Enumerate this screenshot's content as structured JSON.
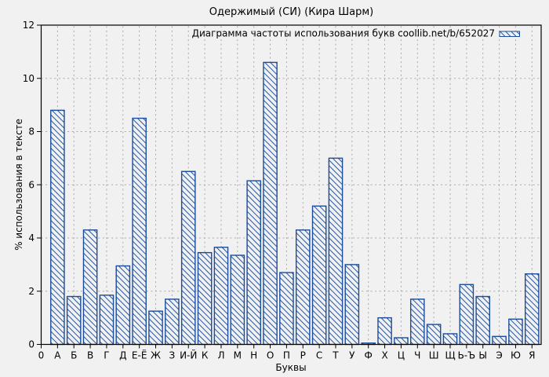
{
  "chart_data": {
    "type": "bar",
    "title": "Одержимый (СИ) (Кира Шарм)",
    "xlabel": "Буквы",
    "ylabel": "% использования в тексте",
    "legend_label": "Диаграмма частоты использования букв coollib.net/b/652027",
    "legend_position": "top-right-inside",
    "bar_style": "diagonal-hatch-outline",
    "grid": true,
    "ylim": [
      0,
      12
    ],
    "yticks": [
      0,
      2,
      4,
      6,
      8,
      10,
      12
    ],
    "x_origin_label": "0",
    "categories": [
      "А",
      "Б",
      "В",
      "Г",
      "Д",
      "Е-Ё",
      "Ж",
      "З",
      "И-Й",
      "К",
      "Л",
      "М",
      "Н",
      "О",
      "П",
      "Р",
      "С",
      "Т",
      "У",
      "Ф",
      "Х",
      "Ц",
      "Ч",
      "Ш",
      "Щ",
      "Ь-Ъ",
      "Ы",
      "Э",
      "Ю",
      "Я"
    ],
    "values": [
      8.8,
      1.8,
      4.3,
      1.85,
      2.95,
      8.5,
      1.25,
      1.7,
      6.5,
      3.45,
      3.65,
      3.35,
      6.15,
      10.6,
      2.7,
      4.3,
      5.2,
      7.0,
      3.0,
      0.05,
      1.0,
      0.25,
      1.7,
      0.75,
      0.4,
      2.25,
      1.8,
      0.3,
      0.95,
      2.65
    ]
  },
  "colors": {
    "background": "#f1f1f1",
    "bar_outline": "#1b4c9c",
    "bar_hatch": "#2357a8",
    "bar_fill": "#f1f1f1",
    "grid": "#a8a8a8",
    "axis": "#000000",
    "text": "#000000"
  }
}
